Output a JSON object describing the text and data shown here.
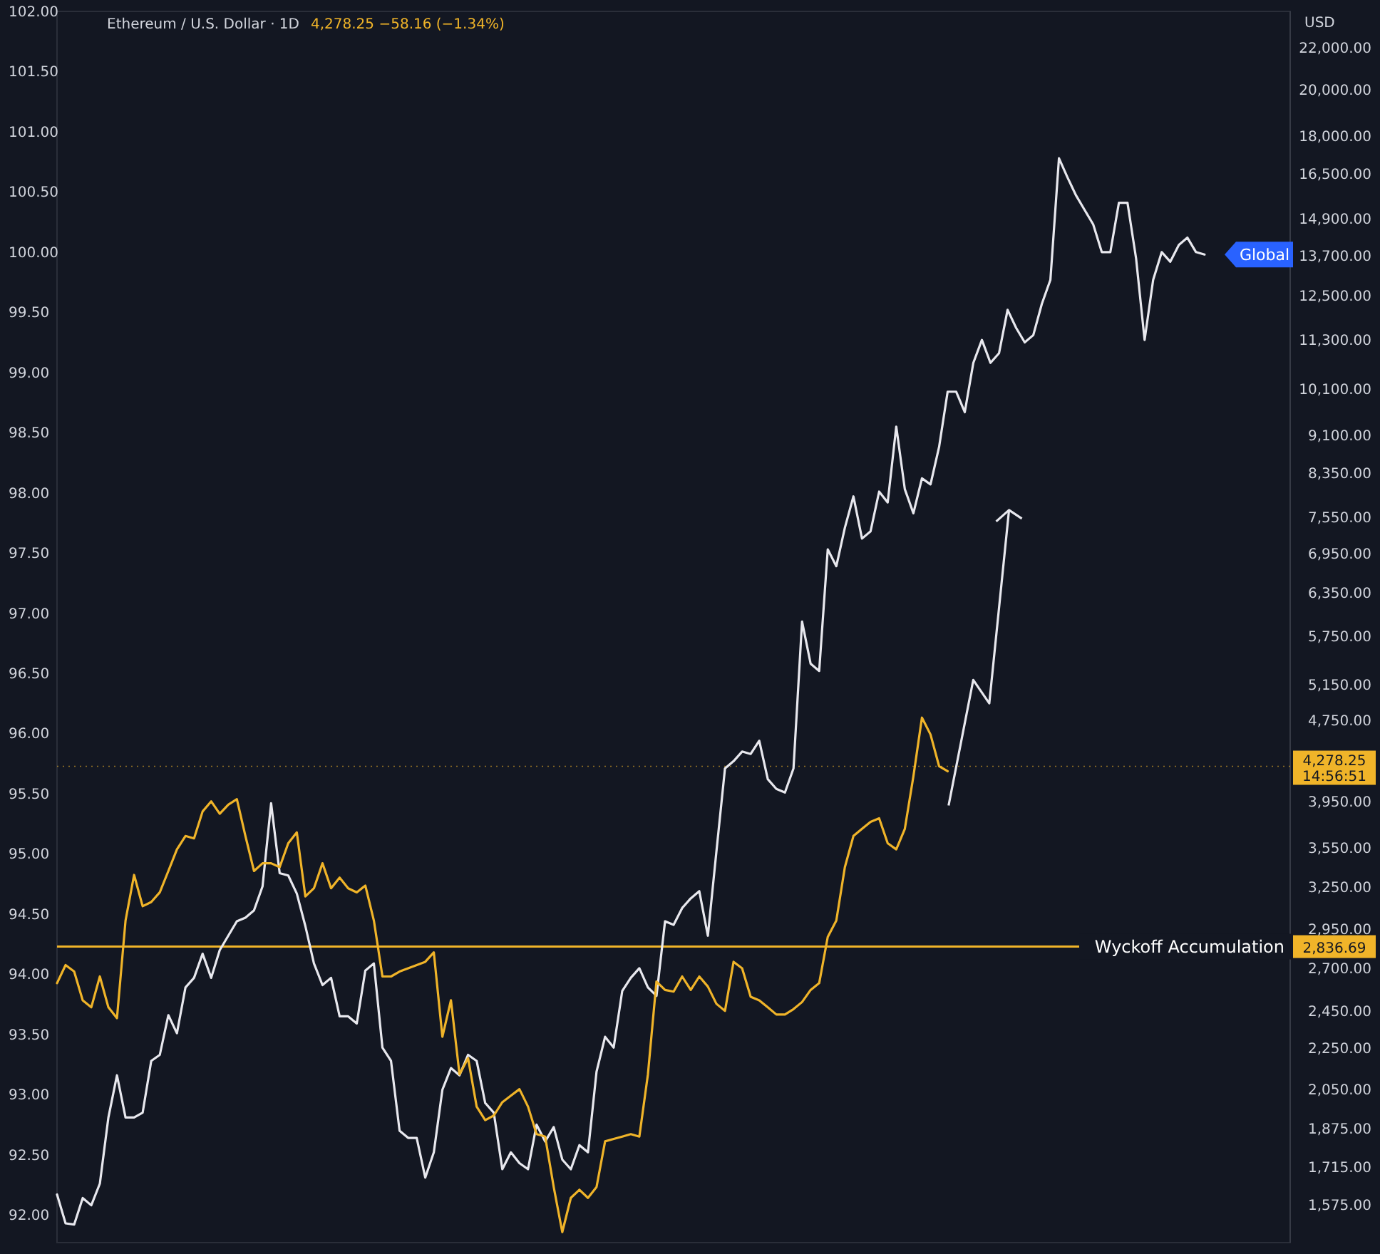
{
  "chart_data": {
    "type": "line",
    "title": "Ethereum / U.S. Dollar · 1D",
    "subtitle": "4,278.25  −58.16 (−1.34%)",
    "y2label": "USD",
    "categories": [
      null,
      null,
      null,
      null,
      null,
      null,
      null,
      null,
      null,
      null,
      null,
      null,
      null,
      null,
      null,
      null,
      null,
      null,
      null,
      null,
      null,
      null,
      null,
      null,
      null,
      null,
      null,
      null,
      null,
      null,
      null,
      null,
      null,
      null,
      null,
      null,
      null,
      null,
      null,
      null,
      null,
      null,
      null,
      null,
      null,
      null,
      null,
      null,
      null,
      null,
      null,
      null,
      null,
      null,
      null,
      null,
      null,
      null,
      null,
      null,
      null,
      null,
      null,
      null,
      null,
      null,
      null,
      null,
      null,
      null,
      null,
      null,
      null,
      null,
      null,
      null,
      null,
      null,
      null,
      null,
      null,
      null,
      null,
      null,
      null,
      null,
      null,
      null,
      null,
      null,
      null,
      null,
      null,
      null,
      null,
      null,
      null,
      null,
      null,
      null,
      null,
      null,
      null,
      null,
      null,
      null,
      null,
      null,
      null,
      null,
      null,
      null,
      null,
      null,
      null,
      null,
      null,
      null,
      null,
      null,
      null,
      null,
      null,
      null,
      null,
      null,
      null,
      null,
      null,
      null,
      null,
      null,
      null,
      null,
      null,
      null,
      null,
      null,
      null,
      null,
      null,
      null,
      null,
      null,
      null
    ],
    "series": [
      {
        "name": "Global",
        "color": "#e8e8ee",
        "axis": "y",
        "values": [
          92.17,
          91.93,
          91.92,
          92.14,
          92.08,
          92.26,
          92.81,
          93.16,
          92.81,
          92.81,
          92.85,
          93.28,
          93.33,
          93.66,
          93.51,
          93.89,
          93.97,
          94.17,
          93.97,
          94.2,
          94.32,
          94.44,
          94.47,
          94.53,
          94.73,
          95.42,
          94.84,
          94.82,
          94.67,
          94.4,
          94.09,
          93.91,
          93.97,
          93.65,
          93.65,
          93.59,
          94.03,
          94.09,
          93.39,
          93.28,
          92.7,
          92.64,
          92.64,
          92.31,
          92.52,
          93.04,
          93.22,
          93.16,
          93.33,
          93.28,
          92.93,
          92.85,
          92.38,
          92.52,
          92.43,
          92.38,
          92.75,
          92.61,
          92.73,
          92.46,
          92.38,
          92.58,
          92.52,
          93.19,
          93.48,
          93.39,
          93.86,
          93.97,
          94.05,
          93.89,
          93.82,
          94.44,
          94.41,
          94.55,
          94.63,
          94.69,
          94.32,
          95.02,
          95.71,
          95.77,
          95.85,
          95.83,
          95.94,
          95.62,
          95.54,
          95.51,
          95.71,
          96.93,
          96.58,
          96.52,
          97.53,
          97.39,
          97.71,
          97.97,
          97.62,
          97.68,
          98.01,
          97.92,
          98.55,
          98.03,
          97.83,
          98.12,
          98.07,
          98.38,
          98.84,
          98.84,
          98.67,
          99.08,
          99.27,
          99.08,
          99.16,
          99.52,
          99.37,
          99.25,
          99.31,
          99.57,
          99.77,
          100.78,
          100.62,
          100.47,
          100.35,
          100.23,
          100.0,
          100.0,
          100.41,
          100.41,
          99.95,
          99.27,
          99.77,
          100.0,
          99.92,
          100.06,
          100.12,
          100.0,
          99.98,
          null,
          null,
          null,
          null,
          null,
          null,
          null,
          null,
          null,
          null
        ]
      },
      {
        "color": "#f0b429",
        "axis": "y2",
        "values": [
          2610,
          2720,
          2680,
          2510,
          2470,
          2650,
          2470,
          2410,
          3010,
          3340,
          3110,
          3140,
          3210,
          3370,
          3540,
          3650,
          3630,
          3860,
          3950,
          3840,
          3920,
          3970,
          3650,
          3370,
          3430,
          3430,
          3400,
          3590,
          3680,
          3180,
          3240,
          3430,
          3240,
          3320,
          3240,
          3210,
          3260,
          3010,
          2650,
          2650,
          2680,
          2700,
          2720,
          2740,
          2800,
          2310,
          2510,
          2120,
          2200,
          1970,
          1910,
          1930,
          1990,
          2020,
          2050,
          1970,
          1850,
          1840,
          1640,
          1480,
          1600,
          1630,
          1600,
          1640,
          1820,
          1830,
          1840,
          1850,
          1840,
          2120,
          2620,
          2570,
          2560,
          2650,
          2570,
          2650,
          2590,
          2490,
          2450,
          2740,
          2700,
          2530,
          2510,
          2470,
          2430,
          2430,
          2460,
          2500,
          2570,
          2610,
          2900,
          3010,
          3400,
          3650,
          3710,
          3770,
          3800,
          3590,
          3540,
          3710,
          4180,
          4780,
          4600,
          4280,
          4230,
          null,
          null,
          null,
          null,
          null,
          null,
          null,
          null,
          null,
          null,
          null,
          null,
          null,
          null,
          null,
          null,
          null,
          null,
          null,
          null,
          null,
          null,
          null,
          null,
          null,
          null,
          null,
          null,
          null,
          null,
          null,
          null,
          null,
          null,
          null,
          null,
          null,
          null,
          null,
          null
        ]
      }
    ],
    "ylim": [
      91.77,
      102.0
    ],
    "yticks": [
      {
        "value": 92,
        "label": "92.00"
      },
      {
        "value": 92.5,
        "label": "92.50"
      },
      {
        "value": 93,
        "label": "93.00"
      },
      {
        "value": 93.5,
        "label": "93.50"
      },
      {
        "value": 94,
        "label": "94.00"
      },
      {
        "value": 94.5,
        "label": "94.50"
      },
      {
        "value": 95,
        "label": "95.00"
      },
      {
        "value": 95.5,
        "label": "95.50"
      },
      {
        "value": 96,
        "label": "96.00"
      },
      {
        "value": 96.5,
        "label": "96.50"
      },
      {
        "value": 97,
        "label": "97.00"
      },
      {
        "value": 97.5,
        "label": "97.50"
      },
      {
        "value": 98,
        "label": "98.00"
      },
      {
        "value": 98.5,
        "label": "98.50"
      },
      {
        "value": 99,
        "label": "99.00"
      },
      {
        "value": 99.5,
        "label": "99.50"
      },
      {
        "value": 100,
        "label": "100.00"
      },
      {
        "value": 100.5,
        "label": "100.50"
      },
      {
        "value": 101,
        "label": "101.00"
      },
      {
        "value": 101.5,
        "label": "101.50"
      },
      {
        "value": 102,
        "label": "102.00"
      }
    ],
    "y2lim": [
      1445,
      23900
    ],
    "y2ticks": [
      {
        "value": 1575,
        "label": "1,575.00"
      },
      {
        "value": 1715,
        "label": "1,715.00"
      },
      {
        "value": 1875,
        "label": "1,875.00"
      },
      {
        "value": 2050,
        "label": "2,050.00"
      },
      {
        "value": 2250,
        "label": "2,250.00"
      },
      {
        "value": 2450,
        "label": "2,450.00"
      },
      {
        "value": 2700,
        "label": "2,700.00"
      },
      {
        "value": 2950,
        "label": "2,950.00"
      },
      {
        "value": 3250,
        "label": "3,250.00"
      },
      {
        "value": 3550,
        "label": "3,550.00"
      },
      {
        "value": 3950,
        "label": "3,950.00"
      },
      {
        "value": 4750,
        "label": "4,750.00"
      },
      {
        "value": 5150,
        "label": "5,150.00"
      },
      {
        "value": 5750,
        "label": "5,750.00"
      },
      {
        "value": 6350,
        "label": "6,350.00"
      },
      {
        "value": 6950,
        "label": "6,950.00"
      },
      {
        "value": 7550,
        "label": "7,550.00"
      },
      {
        "value": 8350,
        "label": "8,350.00"
      },
      {
        "value": 9100,
        "label": "9,100.00"
      },
      {
        "value": 10100,
        "label": "10,100.00"
      },
      {
        "value": 11300,
        "label": "11,300.00"
      },
      {
        "value": 12500,
        "label": "12,500.00"
      },
      {
        "value": 13700,
        "label": "13,700.00"
      },
      {
        "value": 14900,
        "label": "14,900.00"
      },
      {
        "value": 16500,
        "label": "16,500.00"
      },
      {
        "value": 18000,
        "label": "18,000.00"
      },
      {
        "value": 20000,
        "label": "20,000.00"
      },
      {
        "value": 22000,
        "label": "22,000.00"
      }
    ],
    "log": "y2",
    "annotations": [
      "14:56:51",
      "2,836.69"
    ],
    "ref_lines": [
      {
        "axis": "y2",
        "value": 4278.25,
        "label": "4,278.25",
        "color": "#f0b429",
        "line_style": "dotted"
      },
      {
        "axis": "y2",
        "value": 2836.69,
        "label": "Wyckoff Accumulation",
        "color": "#f0b429"
      }
    ]
  }
}
